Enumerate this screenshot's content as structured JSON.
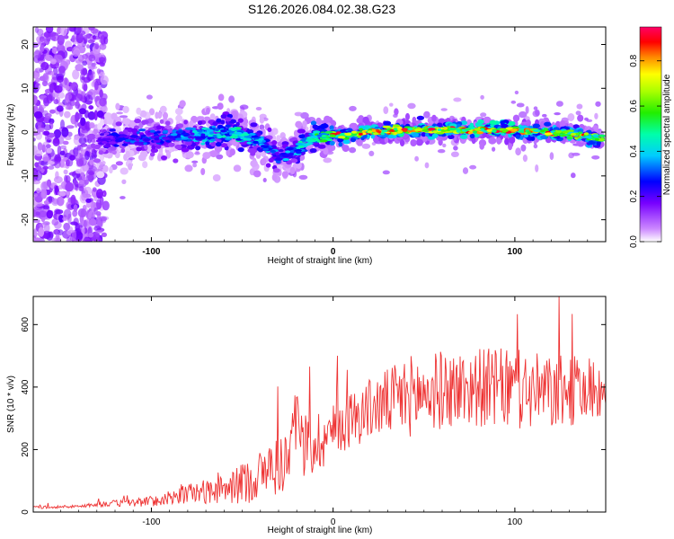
{
  "title": "S126.2026.084.02.38.G23",
  "chart_data": [
    {
      "type": "heatmap",
      "name": "spectrogram",
      "xlabel": "Height of straight line (km)",
      "ylabel": "Frequency (Hz)",
      "xlim": [
        -165,
        150
      ],
      "ylim": [
        -25,
        24
      ],
      "xticks": [
        -100,
        0,
        100
      ],
      "yticks": [
        -20,
        -10,
        0,
        10,
        20
      ],
      "colorbar": {
        "label": "Normalized spectral amplitude",
        "range": [
          0.0,
          0.95
        ],
        "ticks": [
          0.0,
          0.2,
          0.4,
          0.6,
          0.8
        ]
      },
      "ridge": {
        "description_free": true,
        "x": [
          -130,
          -110,
          -90,
          -70,
          -55,
          -40,
          -30,
          -20,
          -10,
          0,
          20,
          40,
          60,
          80,
          100,
          120,
          140,
          148
        ],
        "y": [
          -2,
          -1.5,
          -1,
          -0.5,
          0,
          -2,
          -6,
          -4,
          -1,
          -1,
          0,
          0.5,
          0.5,
          0.5,
          0.3,
          0,
          -1,
          -1.5
        ],
        "amplitude": [
          0.2,
          0.3,
          0.3,
          0.4,
          0.45,
          0.4,
          0.3,
          0.4,
          0.55,
          0.6,
          0.75,
          0.8,
          0.7,
          0.75,
          0.8,
          0.7,
          0.6,
          0.6
        ]
      }
    },
    {
      "type": "line",
      "name": "snr",
      "xlabel": "Height of straight line (km)",
      "ylabel": "SNR (10 * v/v)",
      "xlim": [
        -165,
        150
      ],
      "ylim": [
        0,
        690
      ],
      "xticks": [
        -100,
        0,
        100
      ],
      "yticks": [
        0,
        200,
        400,
        600
      ],
      "color": "#ee3333",
      "envelope": {
        "x": [
          -165,
          -140,
          -130,
          -110,
          -90,
          -80,
          -60,
          -50,
          -40,
          -30,
          -20,
          -10,
          0,
          10,
          20,
          30,
          40,
          60,
          80,
          100,
          120,
          140,
          150
        ],
        "mean": [
          15,
          18,
          25,
          30,
          40,
          60,
          70,
          90,
          120,
          150,
          200,
          220,
          260,
          300,
          330,
          350,
          370,
          390,
          400,
          390,
          380,
          390,
          390
        ],
        "spread": [
          8,
          8,
          15,
          25,
          35,
          60,
          80,
          120,
          150,
          180,
          200,
          200,
          160,
          170,
          180,
          200,
          240,
          230,
          230,
          240,
          220,
          200,
          150
        ]
      }
    }
  ]
}
